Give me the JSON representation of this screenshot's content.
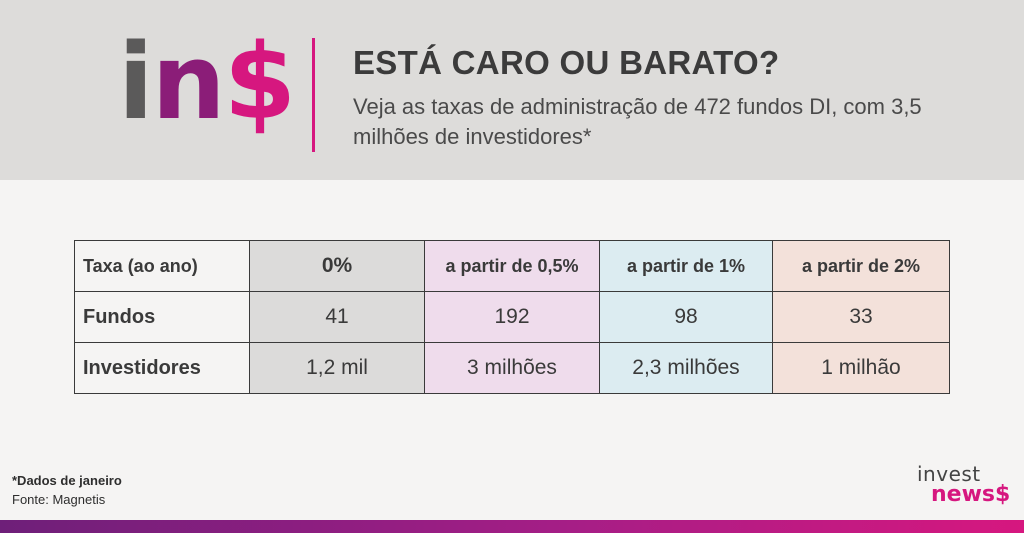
{
  "header": {
    "logo": {
      "i": "i",
      "n": "n",
      "s": "$"
    },
    "title": "ESTÁ CARO OU BARATO?",
    "subtitle": "Veja as taxas de administração de 472 fundos DI, com 3,5 milhões de investidores*"
  },
  "colors": {
    "brand_pink": "#d6177f",
    "logo_gray": "#5b5a5a",
    "logo_purple": "#8b1d78",
    "col_0": "#dcdbda",
    "col_1": "#efdcec",
    "col_2": "#dcecf1",
    "col_3": "#f3e1da"
  },
  "table": {
    "header": [
      "Taxa (ao ano)",
      "0%",
      "a partir de 0,5%",
      "a partir de 1%",
      "a partir de 2%"
    ],
    "rows": [
      {
        "label": "Fundos",
        "values": [
          "41",
          "192",
          "98",
          "33"
        ]
      },
      {
        "label": "Investidores",
        "values": [
          "1,2 mil",
          "3 milhões",
          "2,3 milhões",
          "1 milhão"
        ]
      }
    ]
  },
  "footer": {
    "note": "*Dados de janeiro",
    "source": "Fonte: Magnetis",
    "brand_top": "invest",
    "brand_bottom": "news$"
  }
}
